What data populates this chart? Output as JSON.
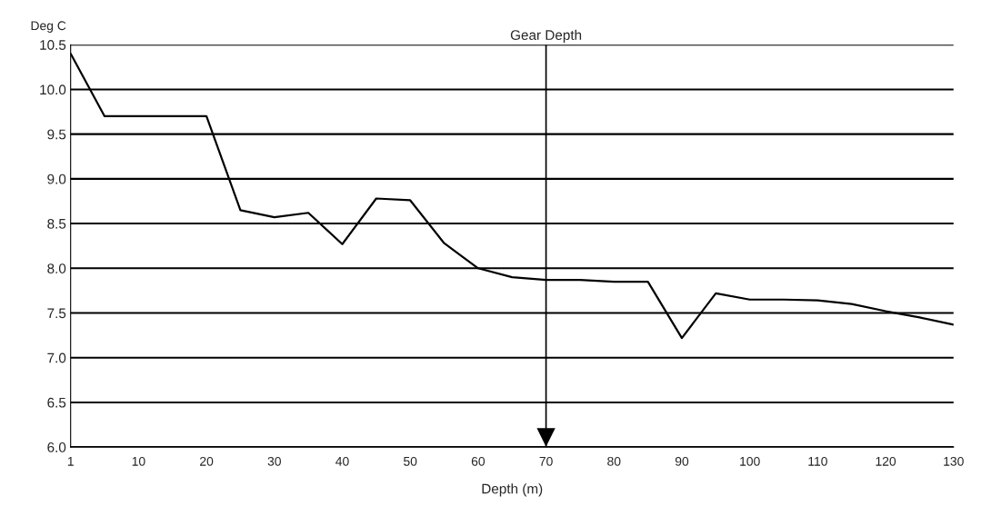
{
  "chart_data": {
    "type": "line",
    "xlabel": "Depth (m)",
    "ylabel": "Deg C",
    "categories": [
      "1",
      null,
      "10",
      null,
      "20",
      null,
      "30",
      null,
      "40",
      null,
      "50",
      null,
      "60",
      null,
      "70",
      null,
      "80",
      null,
      "90",
      null,
      "100",
      null,
      "110",
      null,
      "120",
      null,
      "130"
    ],
    "series": [
      {
        "color": "#000000",
        "values": [
          10.4,
          9.7,
          9.7,
          9.7,
          9.7,
          8.65,
          8.57,
          8.62,
          8.27,
          8.78,
          8.76,
          8.28,
          8.0,
          7.9,
          7.87,
          7.87,
          7.85,
          7.85,
          7.22,
          7.72,
          7.65,
          7.65,
          7.64,
          7.6,
          7.52,
          7.45,
          7.37
        ]
      }
    ],
    "ylim": [
      6.0,
      10.5
    ],
    "yticks": [
      {
        "value": 6.0,
        "label": "6.0"
      },
      6.5,
      {
        "value": 7.0,
        "label": "7.0"
      },
      7.5,
      {
        "value": 8.0,
        "label": "8.0"
      },
      8.5,
      {
        "value": 9.0,
        "label": "9.0"
      },
      9.5,
      {
        "value": 10.0,
        "label": "10.0"
      },
      10.5
    ],
    "grid": "y",
    "marker": "none",
    "line_style": "solid",
    "ref_lines": [
      {
        "axis": "x",
        "value": "70",
        "label": "Gear Depth",
        "color": "#000000"
      }
    ]
  }
}
